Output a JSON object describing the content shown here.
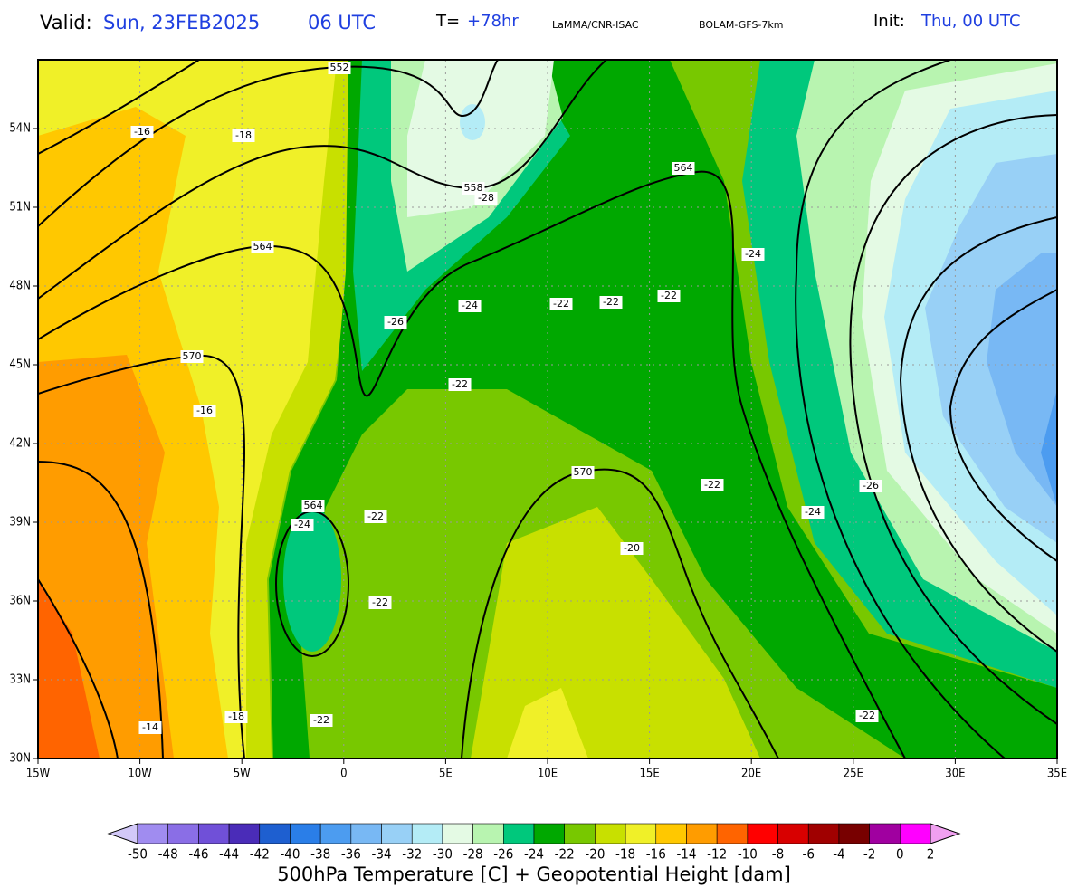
{
  "header": {
    "valid_label": "Valid:",
    "valid_date": "Sun, 23FEB2025",
    "valid_time": "06 UTC",
    "lead_label": "T=",
    "lead": "+78hr",
    "source": "LaMMA/CNR-ISAC",
    "model": "BOLAM-GFS-7km",
    "init_label": "Init:",
    "init": "Thu, 00 UTC"
  },
  "map": {
    "lon_ticks": [
      {
        "value": -15,
        "label": "15W"
      },
      {
        "value": -10,
        "label": "10W"
      },
      {
        "value": -5,
        "label": "5W"
      },
      0,
      {
        "value": 5,
        "label": "5E"
      },
      {
        "value": 10,
        "label": "10E"
      },
      {
        "value": 15,
        "label": "15E"
      },
      {
        "value": 20,
        "label": "20E"
      },
      {
        "value": 25,
        "label": "25E"
      },
      {
        "value": 30,
        "label": "30E"
      },
      {
        "value": 35,
        "label": "35E"
      }
    ],
    "lat_ticks": [
      {
        "value": 30,
        "label": "30N"
      },
      {
        "value": 33,
        "label": "33N"
      },
      {
        "value": 36,
        "label": "36N"
      },
      {
        "value": 39,
        "label": "39N"
      },
      {
        "value": 42,
        "label": "42N"
      },
      {
        "value": 45,
        "label": "45N"
      },
      {
        "value": 48,
        "label": "48N"
      },
      {
        "value": 51,
        "label": "51N"
      },
      {
        "value": 54,
        "label": "54N"
      }
    ],
    "contour_labels": [
      "552",
      "-16",
      "-18",
      "558",
      "-28",
      "564",
      "564",
      "-24",
      "-26",
      "-24",
      "-22",
      "-22",
      "-22",
      "570",
      "-22",
      "-16",
      "570",
      "-22",
      "-26",
      "564",
      "-24",
      "-22",
      "-24",
      "-20",
      "-22",
      "-18",
      "-14",
      "-22",
      "-22"
    ]
  },
  "colorbar": {
    "levels": [
      -50,
      -48,
      -46,
      -44,
      -42,
      -40,
      -38,
      -36,
      -34,
      -32,
      -30,
      -28,
      -26,
      -24,
      -22,
      -20,
      -18,
      -16,
      -14,
      -12,
      -10,
      -8,
      -6,
      -4,
      -2,
      0,
      2
    ],
    "colors": [
      "#d2c8f8",
      "#a08cf0",
      "#8a6ee6",
      "#7050d8",
      "#4a2cb8",
      "#1e5fd0",
      "#2a7ee8",
      "#4c9cf0",
      "#78b8f4",
      "#98d0f6",
      "#b4ecf6",
      "#e4fae4",
      "#b8f4b0",
      "#00c87c",
      "#00a800",
      "#78c800",
      "#c8e000",
      "#f0f028",
      "#ffc800",
      "#ff9c00",
      "#ff6400",
      "#ff0000",
      "#d80000",
      "#a00000",
      "#780000",
      "#a000a0",
      "#ff00ff",
      "#f0a0f0"
    ],
    "title": "500hPa Temperature [C] + Geopotential Height [dam]"
  }
}
